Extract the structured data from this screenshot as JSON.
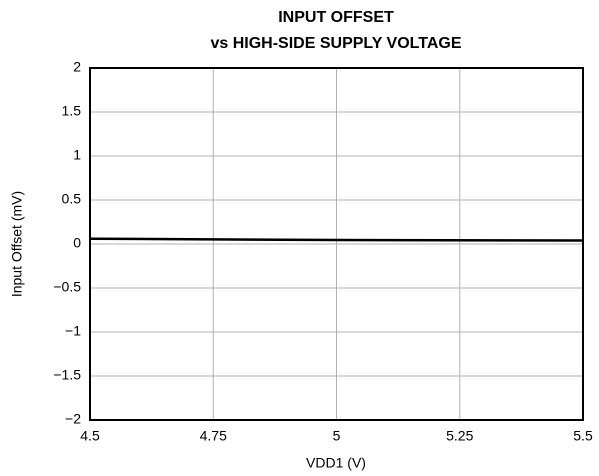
{
  "chart_data": {
    "type": "line",
    "title": [
      "INPUT OFFSET",
      "vs HIGH-SIDE SUPPLY VOLTAGE"
    ],
    "x_label": "VDD1 (V)",
    "y_label": "Input Offset (mV)",
    "x": [
      4.5,
      5,
      5.5
    ],
    "series": [
      {
        "name": "Input Offset",
        "color": "#000000",
        "values": [
          0.06,
          0.045,
          0.04
        ]
      }
    ],
    "xlim": [
      4.5,
      5.5
    ],
    "xticks": [
      4.5,
      4.75,
      5,
      5.25,
      5.5
    ],
    "ylim": [
      -2,
      2
    ],
    "yticks": [
      {
        "value": -2,
        "label": "−2"
      },
      {
        "value": -1.5,
        "label": "−1.5"
      },
      {
        "value": -1,
        "label": "−1"
      },
      {
        "value": -0.5,
        "label": "−0.5"
      },
      0,
      0.5,
      1,
      1.5,
      2
    ],
    "grid": true
  }
}
